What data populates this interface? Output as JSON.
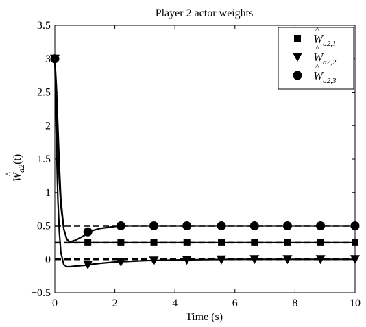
{
  "chart_data": {
    "type": "line",
    "title": "Player 2 actor weights",
    "xlabel": "Time (s)",
    "ylabel": {
      "base": "W",
      "sub": "a2",
      "suffix": "(t)"
    },
    "xlim": [
      0,
      10
    ],
    "ylim": [
      -0.5,
      3.5
    ],
    "xticks": [
      0,
      2,
      4,
      6,
      8,
      10
    ],
    "xtick_labels": [
      "0",
      "2",
      "4",
      "6",
      "8",
      "10"
    ],
    "yticks": [
      -0.5,
      0,
      0.5,
      1,
      1.5,
      2,
      2.5,
      3,
      3.5
    ],
    "ytick_labels": [
      "−0.5",
      "0",
      "0.5",
      "1",
      "1.5",
      "2",
      "2.5",
      "3",
      "3.5"
    ],
    "grid": false,
    "legend_position": "top-right",
    "reference_lines": [
      0.5,
      0.25,
      0.0
    ],
    "series": [
      {
        "name": "Ŵa2,1",
        "legend_base": "W",
        "legend_sub": "a2,1",
        "marker": "square",
        "x": [
          0,
          0.05,
          0.1,
          0.15,
          0.2,
          0.3,
          0.4,
          0.5,
          0.7,
          1.0,
          1.1,
          1.5,
          2,
          3,
          4,
          5,
          6,
          7,
          8,
          9,
          10
        ],
        "y": [
          3.0,
          2.4,
          1.7,
          1.15,
          0.8,
          0.45,
          0.3,
          0.26,
          0.25,
          0.25,
          0.25,
          0.25,
          0.25,
          0.25,
          0.25,
          0.25,
          0.25,
          0.25,
          0.25,
          0.25,
          0.25
        ],
        "marker_x": [
          0,
          1.1,
          2.2,
          3.3,
          4.4,
          5.55,
          6.65,
          7.75,
          8.85,
          10
        ],
        "marker_y": [
          3.0,
          0.25,
          0.25,
          0.25,
          0.25,
          0.25,
          0.25,
          0.25,
          0.25,
          0.25
        ]
      },
      {
        "name": "Ŵa2,2",
        "legend_base": "W",
        "legend_sub": "a2,2",
        "marker": "triangle-down",
        "x": [
          0,
          0.05,
          0.1,
          0.15,
          0.2,
          0.3,
          0.4,
          0.5,
          0.7,
          1.0,
          1.1,
          1.5,
          2,
          2.5,
          3,
          4,
          5,
          6,
          7,
          8,
          9,
          10
        ],
        "y": [
          3.0,
          1.8,
          0.9,
          0.4,
          0.1,
          -0.08,
          -0.11,
          -0.11,
          -0.1,
          -0.09,
          -0.08,
          -0.06,
          -0.04,
          -0.03,
          -0.02,
          -0.01,
          -0.005,
          0,
          0,
          0,
          0,
          0
        ],
        "marker_x": [
          0,
          1.1,
          2.2,
          3.3,
          4.4,
          5.55,
          6.65,
          7.75,
          8.85,
          10
        ],
        "marker_y": [
          3.0,
          -0.08,
          -0.04,
          -0.02,
          -0.01,
          -0.005,
          0,
          0,
          0,
          0
        ]
      },
      {
        "name": "Ŵa2,3",
        "legend_base": "W",
        "legend_sub": "a2,3",
        "marker": "circle",
        "x": [
          0,
          0.05,
          0.1,
          0.15,
          0.2,
          0.3,
          0.4,
          0.5,
          0.7,
          1.0,
          1.1,
          1.5,
          2,
          2.2,
          3,
          4,
          5,
          6,
          7,
          8,
          9,
          10
        ],
        "y": [
          3.0,
          2.6,
          2.0,
          1.4,
          0.9,
          0.45,
          0.3,
          0.26,
          0.29,
          0.36,
          0.41,
          0.46,
          0.49,
          0.5,
          0.5,
          0.5,
          0.5,
          0.5,
          0.5,
          0.5,
          0.5,
          0.5
        ],
        "marker_x": [
          0,
          1.1,
          2.2,
          3.3,
          4.4,
          5.55,
          6.65,
          7.75,
          8.85,
          10
        ],
        "marker_y": [
          3.0,
          0.41,
          0.5,
          0.5,
          0.5,
          0.5,
          0.5,
          0.5,
          0.5,
          0.5
        ]
      }
    ]
  }
}
